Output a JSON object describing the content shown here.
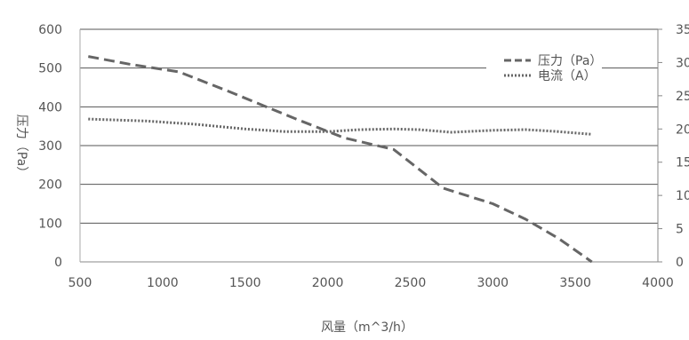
{
  "chart_data": {
    "type": "line",
    "xlabel": "风量（m^3/h）",
    "ylabel": "压力（Pa）",
    "y2label": "",
    "xlim": [
      500,
      4000
    ],
    "ylim": [
      0,
      600
    ],
    "y2lim": [
      0,
      35
    ],
    "x_ticks": [
      500,
      1000,
      1500,
      2000,
      2500,
      3000,
      3500,
      4000
    ],
    "y_ticks": [
      0,
      100,
      200,
      300,
      400,
      500,
      600
    ],
    "y2_ticks": [
      0,
      5,
      10,
      15,
      20,
      25,
      30,
      35
    ],
    "y2_tick_labels": [
      "0",
      "5",
      "10",
      "15",
      "20",
      "25",
      "30",
      "35"
    ],
    "legend_position": "top-right",
    "grid": "horizontal",
    "series": [
      {
        "name": "压力（Pa）",
        "axis": "left",
        "style": "dashed",
        "color": "#666666",
        "x": [
          550,
          800,
          1100,
          1400,
          1800,
          2100,
          2400,
          2550,
          2700,
          3000,
          3200,
          3400,
          3600
        ],
        "y": [
          530,
          510,
          490,
          440,
          370,
          320,
          290,
          240,
          190,
          150,
          110,
          60,
          0
        ]
      },
      {
        "name": "电流（A）",
        "axis": "right",
        "style": "dotted",
        "color": "#666666",
        "x": [
          550,
          900,
          1200,
          1500,
          1750,
          2000,
          2200,
          2400,
          2550,
          2750,
          3000,
          3200,
          3400,
          3600
        ],
        "y": [
          21.5,
          21.2,
          20.7,
          20.0,
          19.6,
          19.6,
          19.9,
          20.0,
          19.9,
          19.5,
          19.8,
          19.9,
          19.6,
          19.2
        ]
      }
    ]
  }
}
